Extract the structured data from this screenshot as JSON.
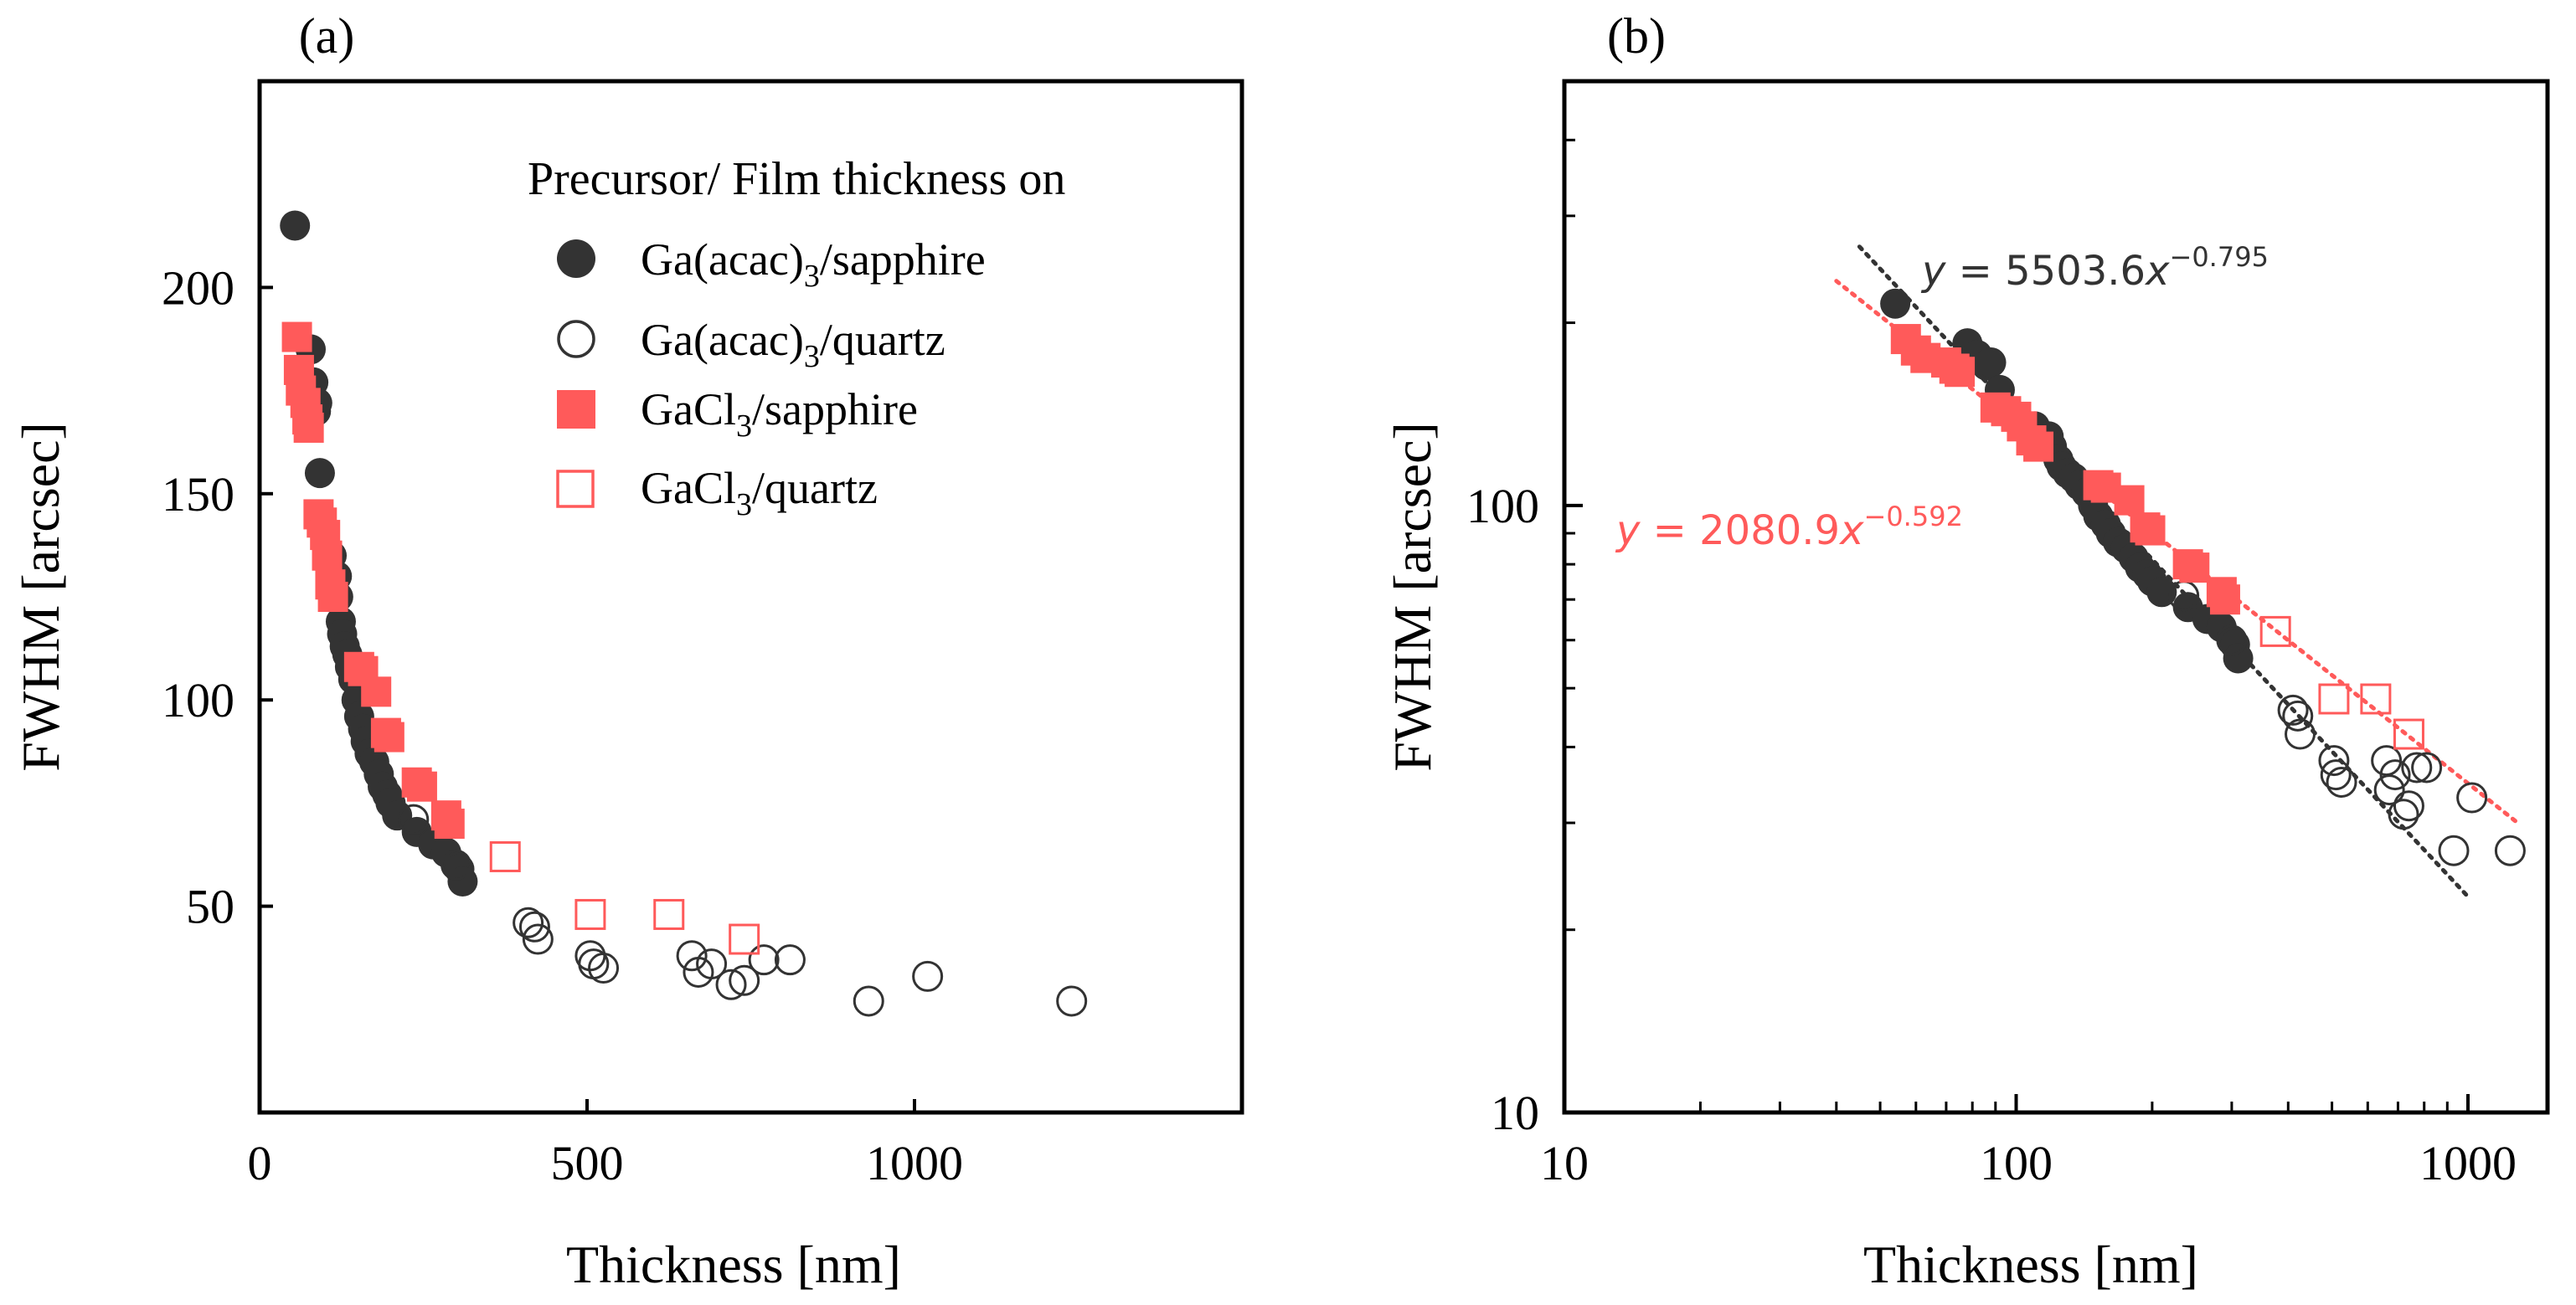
{
  "colors": {
    "dark": "#333333",
    "red": "#ff5a5a",
    "axis": "#000000"
  },
  "chart_data": [
    {
      "panel_label": "(a)",
      "type": "scatter",
      "xscale": "linear",
      "yscale": "linear",
      "xlabel": "Thickness [nm]",
      "ylabel": "FWHM [arcsec]",
      "xlim": [
        0,
        1500
      ],
      "ylim": [
        0,
        250
      ],
      "xticks": [
        0,
        500,
        1000
      ],
      "xtick_labels": [
        "0",
        "500",
        "1000"
      ],
      "yticks": [
        50,
        100,
        150,
        200
      ],
      "ytick_labels": [
        "50",
        "100",
        "150",
        "200"
      ],
      "legend": {
        "title": "Precursor/ Film thickness on",
        "position": "top-right",
        "entries": [
          {
            "base": "Ga(acac)",
            "sub": "3",
            "rest": "/sapphire"
          },
          {
            "base": "Ga(acac)",
            "sub": "3",
            "rest": "/quartz"
          },
          {
            "base": "GaCl",
            "sub": "3",
            "rest": "/sapphire"
          },
          {
            "base": "GaCl",
            "sub": "3",
            "rest": "/quartz"
          }
        ]
      },
      "series": [
        {
          "name": "Ga(acac)3/sapphire",
          "marker": "circle",
          "filled": true,
          "color": "#333333",
          "points": [
            [
              54,
              215
            ],
            [
              78,
              185
            ],
            [
              82,
              177
            ],
            [
              86,
              170
            ],
            [
              88,
              172
            ],
            [
              92,
              155
            ],
            [
              110,
              135
            ],
            [
              118,
              130
            ],
            [
              120,
              125
            ],
            [
              124,
              119
            ],
            [
              126,
              116
            ],
            [
              130,
              113
            ],
            [
              134,
              111
            ],
            [
              138,
              108
            ],
            [
              143,
              105
            ],
            [
              148,
              100
            ],
            [
              152,
              96
            ],
            [
              158,
              93
            ],
            [
              162,
              90
            ],
            [
              168,
              87
            ],
            [
              175,
              85
            ],
            [
              182,
              82
            ],
            [
              188,
              79
            ],
            [
              195,
              77
            ],
            [
              200,
              75
            ],
            [
              210,
              72
            ],
            [
              240,
              68
            ],
            [
              265,
              65
            ],
            [
              285,
              63
            ],
            [
              300,
              60
            ],
            [
              305,
              59
            ],
            [
              310,
              56
            ]
          ]
        },
        {
          "name": "Ga(acac)3/quartz",
          "marker": "circle",
          "filled": false,
          "color": "#333333",
          "points": [
            [
              235,
              71
            ],
            [
              300,
              60
            ],
            [
              410,
              46
            ],
            [
              420,
              45
            ],
            [
              425,
              42
            ],
            [
              505,
              38
            ],
            [
              510,
              36
            ],
            [
              525,
              35
            ],
            [
              660,
              38
            ],
            [
              670,
              34
            ],
            [
              690,
              36
            ],
            [
              720,
              31
            ],
            [
              740,
              32
            ],
            [
              770,
              37
            ],
            [
              810,
              37
            ],
            [
              930,
              27
            ],
            [
              1020,
              33
            ],
            [
              1240,
              27
            ]
          ]
        },
        {
          "name": "GaCl3/sapphire",
          "marker": "square",
          "filled": true,
          "color": "#ff5a5a",
          "points": [
            [
              57,
              188
            ],
            [
              60,
              180
            ],
            [
              63,
              175
            ],
            [
              70,
              172
            ],
            [
              73,
              168
            ],
            [
              75,
              166
            ],
            [
              90,
              145
            ],
            [
              95,
              143
            ],
            [
              100,
              140
            ],
            [
              103,
              135
            ],
            [
              108,
              128
            ],
            [
              112,
              125
            ],
            [
              152,
              108
            ],
            [
              158,
              107
            ],
            [
              178,
              102
            ],
            [
              193,
              92
            ],
            [
              198,
              91
            ],
            [
              240,
              80
            ],
            [
              248,
              79
            ],
            [
              285,
              72
            ],
            [
              290,
              70
            ]
          ]
        },
        {
          "name": "GaCl3/quartz",
          "marker": "square",
          "filled": false,
          "color": "#ff5a5a",
          "points": [
            [
              375,
              62
            ],
            [
              505,
              48
            ],
            [
              625,
              48
            ],
            [
              740,
              42
            ]
          ]
        }
      ]
    },
    {
      "panel_label": "(b)",
      "type": "scatter",
      "xscale": "log",
      "yscale": "log",
      "xlabel": "Thickness [nm]",
      "ylabel": "FWHM [arcsec]",
      "xlim": [
        10,
        1500
      ],
      "ylim": [
        10,
        500
      ],
      "xticks": [
        10,
        100,
        1000
      ],
      "xtick_labels": [
        "10",
        "100",
        "1000"
      ],
      "yticks": [
        10,
        100
      ],
      "ytick_labels": [
        "10",
        "100"
      ],
      "fits": [
        {
          "label": "y = 5503.6x^(-0.795)",
          "coef": 5503.6,
          "exp": -0.795,
          "x_range": [
            45,
            1000
          ],
          "color": "#333333",
          "style": "dotted",
          "lhs": "y",
          "eq": " = 5503.6",
          "var": "x",
          "sup": "−0.795"
        },
        {
          "label": "y = 2080.9x^(-0.592)",
          "coef": 2080.9,
          "exp": -0.592,
          "x_range": [
            40,
            1300
          ],
          "color": "#ff5a5a",
          "style": "dotted",
          "lhs": "y",
          "eq": " = 2080.9",
          "var": "x",
          "sup": "−0.592"
        }
      ]
    }
  ]
}
